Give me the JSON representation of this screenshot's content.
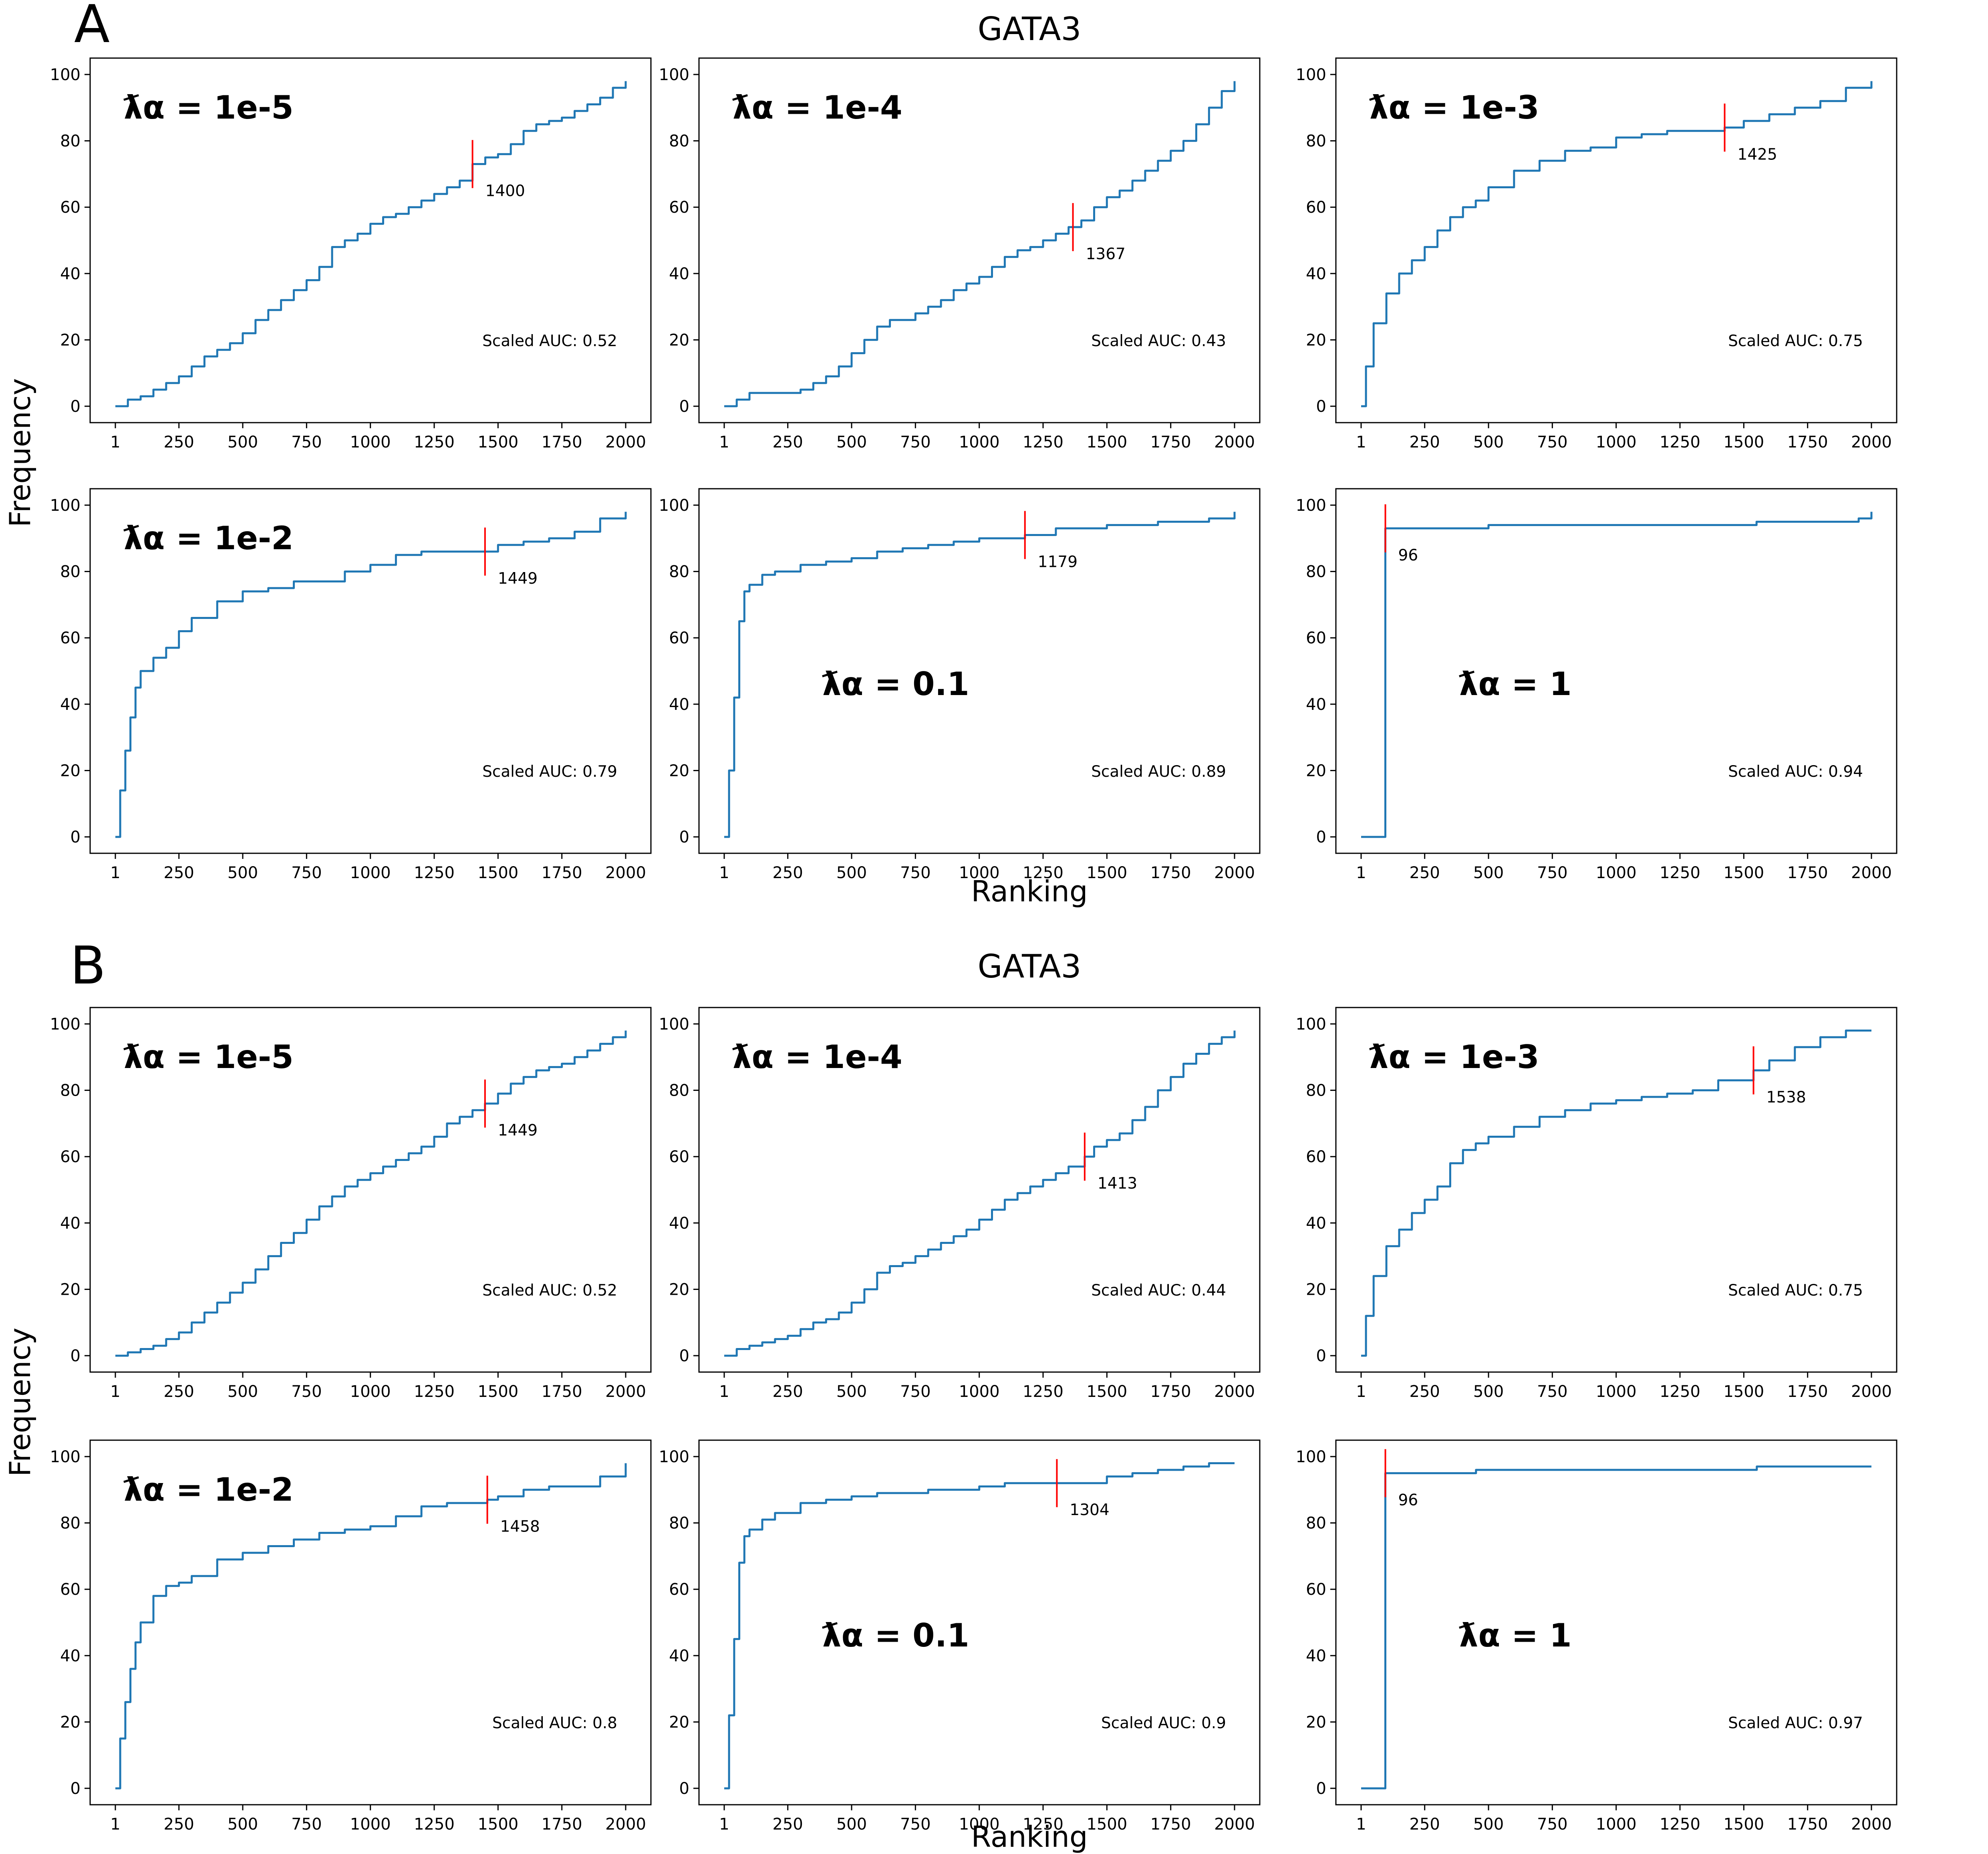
{
  "figure": {
    "xlabel": "Ranking",
    "ylabel": "Frequency"
  },
  "chart_data": [
    {
      "panel": "A",
      "title": "GATA3",
      "subplots": [
        {
          "type": "line",
          "lambda_label": "ƛα = 1e-5",
          "auc_text": "Scaled AUC: 0.52",
          "marker_x": 1400,
          "marker_label": "1400",
          "xticks": [
            1,
            250,
            500,
            750,
            1000,
            1250,
            1500,
            1750,
            2000
          ],
          "yticks": [
            0,
            20,
            40,
            60,
            80,
            100
          ],
          "xlim": [
            1,
            2000
          ],
          "ylim": [
            0,
            100
          ],
          "x": [
            1,
            50,
            100,
            150,
            200,
            250,
            300,
            350,
            400,
            450,
            500,
            550,
            600,
            650,
            700,
            750,
            800,
            850,
            900,
            950,
            1000,
            1050,
            1100,
            1150,
            1200,
            1250,
            1300,
            1350,
            1400,
            1450,
            1500,
            1550,
            1600,
            1650,
            1700,
            1750,
            1800,
            1850,
            1900,
            1950,
            2000
          ],
          "y": [
            0,
            2,
            3,
            5,
            7,
            9,
            12,
            15,
            17,
            19,
            22,
            26,
            29,
            32,
            35,
            38,
            42,
            48,
            50,
            52,
            55,
            57,
            58,
            60,
            62,
            64,
            66,
            68,
            73,
            75,
            76,
            79,
            83,
            85,
            86,
            87,
            89,
            91,
            93,
            96,
            98
          ]
        },
        {
          "type": "line",
          "lambda_label": "ƛα = 1e-4",
          "auc_text": "Scaled AUC: 0.43",
          "marker_x": 1367,
          "marker_label": "1367",
          "xticks": [
            1,
            250,
            500,
            750,
            1000,
            1250,
            1500,
            1750,
            2000
          ],
          "yticks": [
            0,
            20,
            40,
            60,
            80,
            100
          ],
          "xlim": [
            1,
            2000
          ],
          "ylim": [
            0,
            100
          ],
          "x": [
            1,
            50,
            100,
            150,
            200,
            250,
            300,
            350,
            400,
            450,
            500,
            550,
            600,
            650,
            700,
            750,
            800,
            850,
            900,
            950,
            1000,
            1050,
            1100,
            1150,
            1200,
            1250,
            1300,
            1350,
            1400,
            1450,
            1500,
            1550,
            1600,
            1650,
            1700,
            1750,
            1800,
            1850,
            1900,
            1950,
            2000
          ],
          "y": [
            0,
            2,
            4,
            4,
            4,
            4,
            5,
            7,
            9,
            12,
            16,
            20,
            24,
            26,
            26,
            28,
            30,
            32,
            35,
            37,
            39,
            42,
            45,
            47,
            48,
            50,
            52,
            54,
            56,
            60,
            63,
            65,
            68,
            71,
            74,
            77,
            80,
            85,
            90,
            95,
            98
          ]
        },
        {
          "type": "line",
          "lambda_label": "ƛα = 1e-3",
          "auc_text": "Scaled AUC: 0.75",
          "marker_x": 1425,
          "marker_label": "1425",
          "xticks": [
            1,
            250,
            500,
            750,
            1000,
            1250,
            1500,
            1750,
            2000
          ],
          "yticks": [
            0,
            20,
            40,
            60,
            80,
            100
          ],
          "xlim": [
            1,
            2000
          ],
          "ylim": [
            0,
            100
          ],
          "x": [
            1,
            20,
            50,
            100,
            150,
            200,
            250,
            300,
            350,
            400,
            450,
            500,
            600,
            700,
            800,
            900,
            1000,
            1100,
            1200,
            1300,
            1425,
            1500,
            1600,
            1700,
            1800,
            1900,
            2000
          ],
          "y": [
            0,
            12,
            25,
            34,
            40,
            44,
            48,
            53,
            57,
            60,
            62,
            66,
            71,
            74,
            77,
            78,
            81,
            82,
            83,
            83,
            84,
            86,
            88,
            90,
            92,
            96,
            98
          ]
        },
        {
          "type": "line",
          "lambda_label": "ƛα = 1e-2",
          "auc_text": "Scaled AUC: 0.79",
          "marker_x": 1449,
          "marker_label": "1449",
          "xticks": [
            1,
            250,
            500,
            750,
            1000,
            1250,
            1500,
            1750,
            2000
          ],
          "yticks": [
            0,
            20,
            40,
            60,
            80,
            100
          ],
          "xlim": [
            1,
            2000
          ],
          "ylim": [
            0,
            100
          ],
          "x": [
            1,
            20,
            40,
            60,
            80,
            100,
            150,
            200,
            250,
            300,
            400,
            500,
            600,
            700,
            800,
            900,
            1000,
            1100,
            1200,
            1300,
            1449,
            1500,
            1600,
            1700,
            1800,
            1900,
            2000
          ],
          "y": [
            0,
            14,
            26,
            36,
            45,
            50,
            54,
            57,
            62,
            66,
            71,
            74,
            75,
            77,
            77,
            80,
            82,
            85,
            86,
            86,
            86,
            88,
            89,
            90,
            92,
            96,
            98
          ]
        },
        {
          "type": "line",
          "lambda_label": "ƛα = 0.1",
          "auc_text": "Scaled AUC: 0.89",
          "marker_x": 1179,
          "marker_label": "1179",
          "xticks": [
            1,
            250,
            500,
            750,
            1000,
            1250,
            1500,
            1750,
            2000
          ],
          "yticks": [
            0,
            20,
            40,
            60,
            80,
            100
          ],
          "xlim": [
            1,
            2000
          ],
          "ylim": [
            0,
            100
          ],
          "x": [
            1,
            20,
            40,
            60,
            80,
            100,
            150,
            200,
            300,
            400,
            500,
            600,
            700,
            800,
            900,
            1000,
            1179,
            1300,
            1500,
            1700,
            1900,
            2000
          ],
          "y": [
            0,
            20,
            42,
            65,
            74,
            76,
            79,
            80,
            82,
            83,
            84,
            86,
            87,
            88,
            89,
            90,
            91,
            93,
            94,
            95,
            96,
            98
          ]
        },
        {
          "type": "line",
          "lambda_label": "ƛα = 1",
          "auc_text": "Scaled AUC: 0.94",
          "marker_x": 96,
          "marker_label": "96",
          "xticks": [
            1,
            250,
            500,
            750,
            1000,
            1250,
            1500,
            1750,
            2000
          ],
          "yticks": [
            0,
            20,
            40,
            60,
            80,
            100
          ],
          "xlim": [
            1,
            2000
          ],
          "ylim": [
            0,
            100
          ],
          "x": [
            1,
            96,
            97,
            500,
            1000,
            1500,
            1550,
            1950,
            2000
          ],
          "y": [
            0,
            93,
            93,
            94,
            94,
            94,
            95,
            96,
            98
          ]
        }
      ]
    },
    {
      "panel": "B",
      "title": "GATA3",
      "subplots": [
        {
          "type": "line",
          "lambda_label": "ƛα = 1e-5",
          "auc_text": "Scaled AUC: 0.52",
          "marker_x": 1449,
          "marker_label": "1449",
          "xticks": [
            1,
            250,
            500,
            750,
            1000,
            1250,
            1500,
            1750,
            2000
          ],
          "yticks": [
            0,
            20,
            40,
            60,
            80,
            100
          ],
          "xlim": [
            1,
            2000
          ],
          "ylim": [
            0,
            100
          ],
          "x": [
            1,
            50,
            100,
            150,
            200,
            250,
            300,
            350,
            400,
            450,
            500,
            550,
            600,
            650,
            700,
            750,
            800,
            850,
            900,
            950,
            1000,
            1050,
            1100,
            1150,
            1200,
            1250,
            1300,
            1350,
            1400,
            1449,
            1500,
            1550,
            1600,
            1650,
            1700,
            1750,
            1800,
            1850,
            1900,
            1950,
            2000
          ],
          "y": [
            0,
            1,
            2,
            3,
            5,
            7,
            10,
            13,
            16,
            19,
            22,
            26,
            30,
            34,
            37,
            41,
            45,
            48,
            51,
            53,
            55,
            57,
            59,
            61,
            63,
            66,
            70,
            72,
            74,
            76,
            79,
            82,
            84,
            86,
            87,
            88,
            90,
            92,
            94,
            96,
            98
          ]
        },
        {
          "type": "line",
          "lambda_label": "ƛα = 1e-4",
          "auc_text": "Scaled AUC: 0.44",
          "marker_x": 1413,
          "marker_label": "1413",
          "xticks": [
            1,
            250,
            500,
            750,
            1000,
            1250,
            1500,
            1750,
            2000
          ],
          "yticks": [
            0,
            20,
            40,
            60,
            80,
            100
          ],
          "xlim": [
            1,
            2000
          ],
          "ylim": [
            0,
            100
          ],
          "x": [
            1,
            50,
            100,
            150,
            200,
            250,
            300,
            350,
            400,
            450,
            500,
            550,
            600,
            650,
            700,
            750,
            800,
            850,
            900,
            950,
            1000,
            1050,
            1100,
            1150,
            1200,
            1250,
            1300,
            1350,
            1413,
            1450,
            1500,
            1550,
            1600,
            1650,
            1700,
            1750,
            1800,
            1850,
            1900,
            1950,
            2000
          ],
          "y": [
            0,
            2,
            3,
            4,
            5,
            6,
            8,
            10,
            11,
            13,
            16,
            20,
            25,
            27,
            28,
            30,
            32,
            34,
            36,
            38,
            41,
            44,
            47,
            49,
            51,
            53,
            55,
            57,
            60,
            63,
            65,
            67,
            71,
            75,
            80,
            84,
            88,
            91,
            94,
            96,
            98
          ]
        },
        {
          "type": "line",
          "lambda_label": "ƛα = 1e-3",
          "auc_text": "Scaled AUC: 0.75",
          "marker_x": 1538,
          "marker_label": "1538",
          "xticks": [
            1,
            250,
            500,
            750,
            1000,
            1250,
            1500,
            1750,
            2000
          ],
          "yticks": [
            0,
            20,
            40,
            60,
            80,
            100
          ],
          "xlim": [
            1,
            2000
          ],
          "ylim": [
            0,
            100
          ],
          "x": [
            1,
            20,
            50,
            100,
            150,
            200,
            250,
            300,
            350,
            400,
            450,
            500,
            600,
            700,
            800,
            900,
            1000,
            1100,
            1200,
            1300,
            1400,
            1538,
            1600,
            1700,
            1800,
            1900,
            2000
          ],
          "y": [
            0,
            12,
            24,
            33,
            38,
            43,
            47,
            51,
            58,
            62,
            64,
            66,
            69,
            72,
            74,
            76,
            77,
            78,
            79,
            80,
            83,
            86,
            89,
            93,
            96,
            98,
            98
          ]
        },
        {
          "type": "line",
          "lambda_label": "ƛα = 1e-2",
          "auc_text": "Scaled AUC: 0.8",
          "marker_x": 1458,
          "marker_label": "1458",
          "xticks": [
            1,
            250,
            500,
            750,
            1000,
            1250,
            1500,
            1750,
            2000
          ],
          "yticks": [
            0,
            20,
            40,
            60,
            80,
            100
          ],
          "xlim": [
            1,
            2000
          ],
          "ylim": [
            0,
            100
          ],
          "x": [
            1,
            20,
            40,
            60,
            80,
            100,
            150,
            200,
            250,
            300,
            400,
            500,
            600,
            700,
            800,
            900,
            1000,
            1100,
            1200,
            1300,
            1458,
            1500,
            1600,
            1700,
            1800,
            1900,
            2000
          ],
          "y": [
            0,
            15,
            26,
            36,
            44,
            50,
            58,
            61,
            62,
            64,
            69,
            71,
            73,
            75,
            77,
            78,
            79,
            82,
            85,
            86,
            87,
            88,
            90,
            91,
            91,
            94,
            98
          ]
        },
        {
          "type": "line",
          "lambda_label": "ƛα = 0.1",
          "auc_text": "Scaled AUC: 0.9",
          "marker_x": 1304,
          "marker_label": "1304",
          "xticks": [
            1,
            250,
            500,
            750,
            1000,
            1250,
            1500,
            1750,
            2000
          ],
          "yticks": [
            0,
            20,
            40,
            60,
            80,
            100
          ],
          "xlim": [
            1,
            2000
          ],
          "ylim": [
            0,
            100
          ],
          "x": [
            1,
            20,
            40,
            60,
            80,
            100,
            150,
            200,
            300,
            400,
            500,
            600,
            700,
            800,
            900,
            1000,
            1100,
            1304,
            1400,
            1500,
            1600,
            1700,
            1800,
            1900,
            2000
          ],
          "y": [
            0,
            22,
            45,
            68,
            76,
            78,
            81,
            83,
            86,
            87,
            88,
            89,
            89,
            90,
            90,
            91,
            92,
            92,
            92,
            94,
            95,
            96,
            97,
            98,
            98
          ]
        },
        {
          "type": "line",
          "lambda_label": "ƛα = 1",
          "auc_text": "Scaled AUC: 0.97",
          "marker_x": 96,
          "marker_label": "96",
          "xticks": [
            1,
            250,
            500,
            750,
            1000,
            1250,
            1500,
            1750,
            2000
          ],
          "yticks": [
            0,
            20,
            40,
            60,
            80,
            100
          ],
          "xlim": [
            1,
            2000
          ],
          "ylim": [
            0,
            100
          ],
          "x": [
            1,
            96,
            97,
            450,
            451,
            1000,
            1550,
            1551,
            2000
          ],
          "y": [
            0,
            95,
            95,
            95,
            96,
            96,
            96,
            97,
            97
          ]
        }
      ]
    }
  ]
}
